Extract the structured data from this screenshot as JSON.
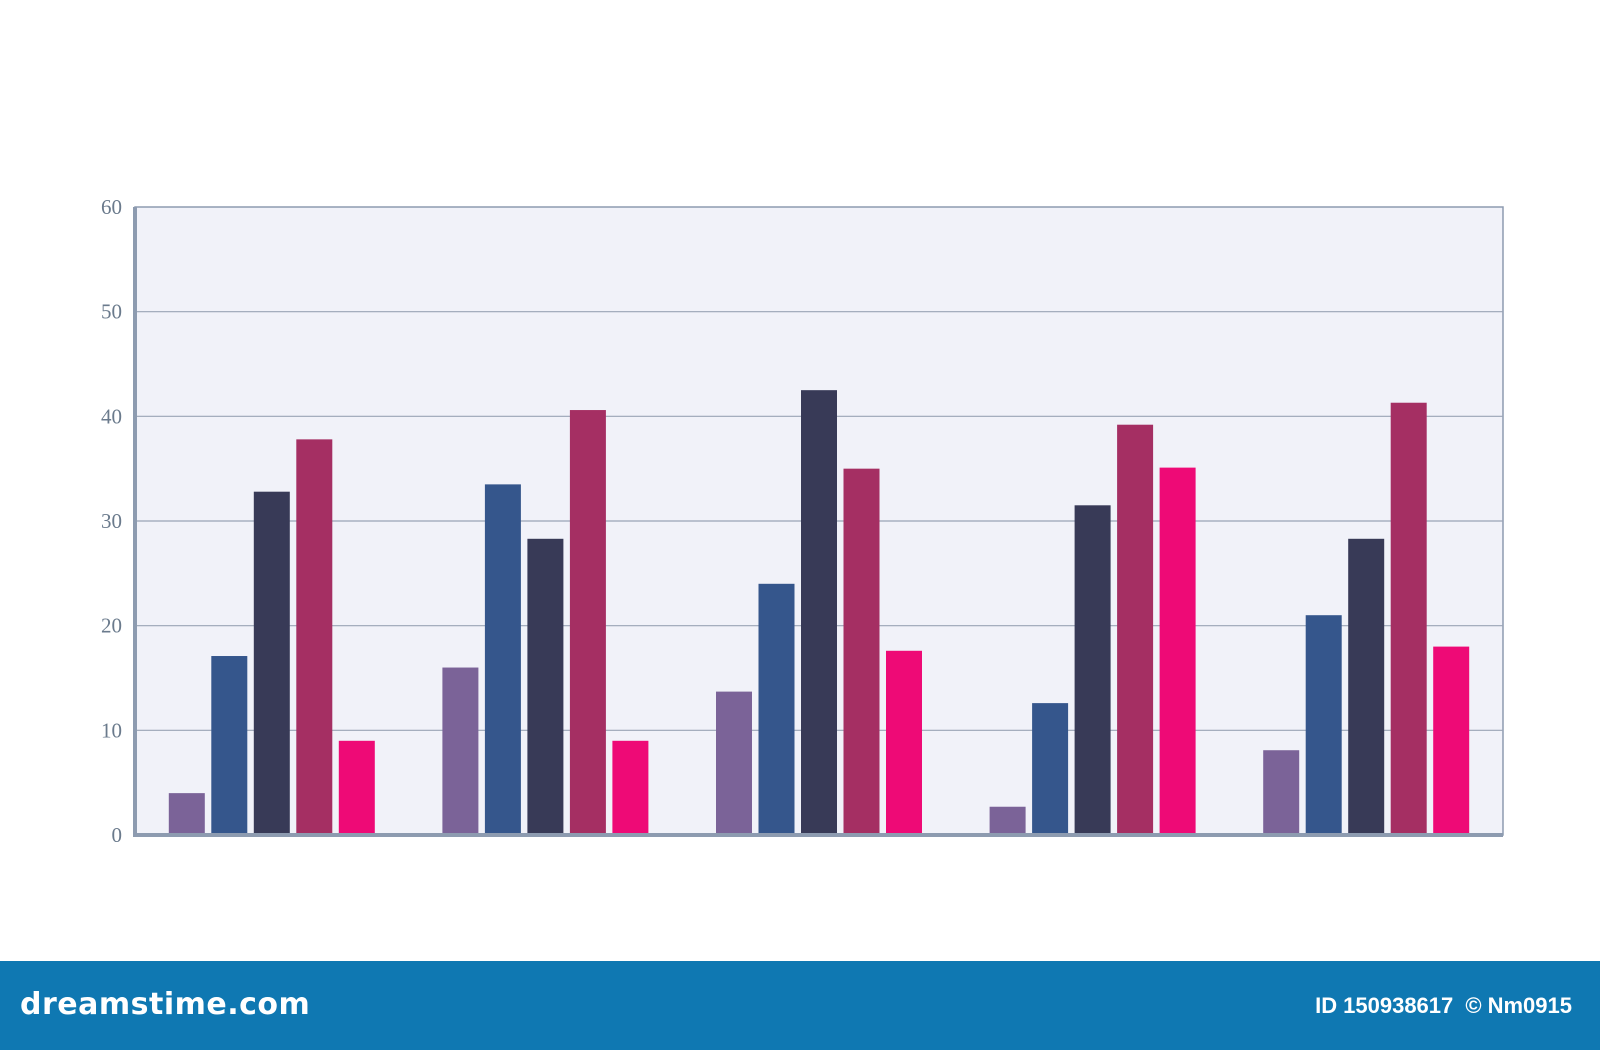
{
  "chart_data": {
    "type": "bar",
    "categories": [
      "",
      "",
      "",
      "",
      ""
    ],
    "series": [
      {
        "color": "#7b6398",
        "values": [
          4,
          16,
          13.7,
          2.7,
          8.1
        ]
      },
      {
        "color": "#35568c",
        "values": [
          17.1,
          33.5,
          24,
          12.6,
          21
        ]
      },
      {
        "color": "#383a57",
        "values": [
          32.8,
          28.3,
          42.5,
          31.5,
          28.3
        ]
      },
      {
        "color": "#a52f63",
        "values": [
          37.8,
          40.6,
          35,
          39.2,
          41.3
        ]
      },
      {
        "color": "#ee0a76",
        "values": [
          9,
          9,
          17.6,
          35.1,
          18
        ]
      }
    ],
    "yticks": [
      "0",
      "10",
      "20",
      "30",
      "40",
      "50",
      "60"
    ],
    "ylim": [
      0,
      60
    ],
    "grid": true,
    "legend": "none",
    "background": "#f1f2f9"
  },
  "footer": {
    "brand": "dreamstime.com",
    "id_label": "ID",
    "id_value": "150938617",
    "copyright": "©",
    "author": "Nm0915"
  }
}
